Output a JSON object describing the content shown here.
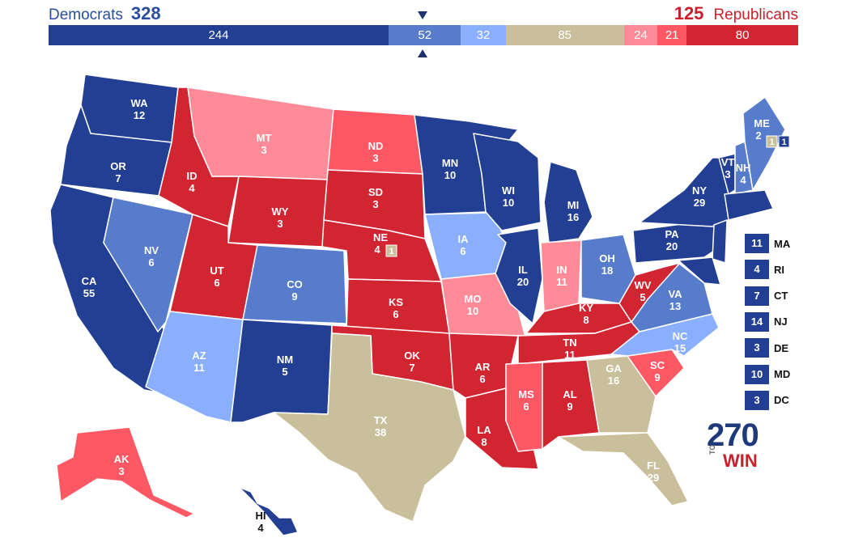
{
  "header": {
    "dem_name": "Democrats",
    "dem_total": "328",
    "rep_total": "125",
    "rep_name": "Republicans"
  },
  "bar": [
    {
      "value": 244,
      "label": "244",
      "color": "#233f94"
    },
    {
      "value": 52,
      "label": "52",
      "color": "#577ccc"
    },
    {
      "value": 32,
      "label": "32",
      "color": "#8aafff"
    },
    {
      "value": 85,
      "label": "85",
      "color": "#c9c09b"
    },
    {
      "value": 24,
      "label": "24",
      "color": "#ff8b98"
    },
    {
      "value": 21,
      "label": "21",
      "color": "#ff5865"
    },
    {
      "value": 80,
      "label": "80",
      "color": "#d22532"
    }
  ],
  "colors": {
    "safe_d": "#233f94",
    "likely_d": "#577ccc",
    "lean_d": "#8aafff",
    "tossup": "#c9c09b",
    "lean_r": "#ff8b98",
    "likely_r": "#ff5865",
    "safe_r": "#d22532"
  },
  "states": {
    "WA": {
      "ab": "WA",
      "ev": "12",
      "cat": "safe_d"
    },
    "OR": {
      "ab": "OR",
      "ev": "7",
      "cat": "safe_d"
    },
    "CA": {
      "ab": "CA",
      "ev": "55",
      "cat": "safe_d"
    },
    "NV": {
      "ab": "NV",
      "ev": "6",
      "cat": "likely_d"
    },
    "ID": {
      "ab": "ID",
      "ev": "4",
      "cat": "safe_r"
    },
    "MT": {
      "ab": "MT",
      "ev": "3",
      "cat": "lean_r"
    },
    "WY": {
      "ab": "WY",
      "ev": "3",
      "cat": "safe_r"
    },
    "UT": {
      "ab": "UT",
      "ev": "6",
      "cat": "safe_r"
    },
    "AZ": {
      "ab": "AZ",
      "ev": "11",
      "cat": "lean_d"
    },
    "CO": {
      "ab": "CO",
      "ev": "9",
      "cat": "likely_d"
    },
    "NM": {
      "ab": "NM",
      "ev": "5",
      "cat": "safe_d"
    },
    "ND": {
      "ab": "ND",
      "ev": "3",
      "cat": "likely_r"
    },
    "SD": {
      "ab": "SD",
      "ev": "3",
      "cat": "safe_r"
    },
    "NE": {
      "ab": "NE",
      "ev": "4",
      "cat": "safe_r"
    },
    "KS": {
      "ab": "KS",
      "ev": "6",
      "cat": "safe_r"
    },
    "OK": {
      "ab": "OK",
      "ev": "7",
      "cat": "safe_r"
    },
    "TX": {
      "ab": "TX",
      "ev": "38",
      "cat": "tossup"
    },
    "MN": {
      "ab": "MN",
      "ev": "10",
      "cat": "safe_d"
    },
    "IA": {
      "ab": "IA",
      "ev": "6",
      "cat": "lean_d"
    },
    "MO": {
      "ab": "MO",
      "ev": "10",
      "cat": "lean_r"
    },
    "AR": {
      "ab": "AR",
      "ev": "6",
      "cat": "safe_r"
    },
    "LA": {
      "ab": "LA",
      "ev": "8",
      "cat": "safe_r"
    },
    "WI": {
      "ab": "WI",
      "ev": "10",
      "cat": "safe_d"
    },
    "IL": {
      "ab": "IL",
      "ev": "20",
      "cat": "safe_d"
    },
    "MI": {
      "ab": "MI",
      "ev": "16",
      "cat": "safe_d"
    },
    "IN": {
      "ab": "IN",
      "ev": "11",
      "cat": "lean_r"
    },
    "OH": {
      "ab": "OH",
      "ev": "18",
      "cat": "likely_d"
    },
    "KY": {
      "ab": "KY",
      "ev": "8",
      "cat": "safe_r"
    },
    "TN": {
      "ab": "TN",
      "ev": "11",
      "cat": "safe_r"
    },
    "MS": {
      "ab": "MS",
      "ev": "6",
      "cat": "likely_r"
    },
    "AL": {
      "ab": "AL",
      "ev": "9",
      "cat": "safe_r"
    },
    "GA": {
      "ab": "GA",
      "ev": "16",
      "cat": "tossup"
    },
    "FL": {
      "ab": "FL",
      "ev": "29",
      "cat": "tossup"
    },
    "SC": {
      "ab": "SC",
      "ev": "9",
      "cat": "likely_r"
    },
    "NC": {
      "ab": "NC",
      "ev": "15",
      "cat": "lean_d"
    },
    "VA": {
      "ab": "VA",
      "ev": "13",
      "cat": "likely_d"
    },
    "WV": {
      "ab": "WV",
      "ev": "5",
      "cat": "safe_r"
    },
    "PA": {
      "ab": "PA",
      "ev": "20",
      "cat": "safe_d"
    },
    "NY": {
      "ab": "NY",
      "ev": "29",
      "cat": "safe_d"
    },
    "VT": {
      "ab": "VT",
      "ev": "3",
      "cat": "safe_d"
    },
    "NH": {
      "ab": "NH",
      "ev": "4",
      "cat": "likely_d"
    },
    "ME": {
      "ab": "ME",
      "ev": "2",
      "cat": "likely_d"
    },
    "AK": {
      "ab": "AK",
      "ev": "3",
      "cat": "likely_r"
    },
    "HI": {
      "ab": "HI",
      "ev": "4",
      "cat": "safe_d"
    }
  },
  "split_votes": {
    "ne_cd2": "1",
    "me_cd2": "1",
    "me_cd1": "1"
  },
  "small_states": [
    {
      "ab": "MA",
      "ev": "11"
    },
    {
      "ab": "RI",
      "ev": "4"
    },
    {
      "ab": "CT",
      "ev": "7"
    },
    {
      "ab": "NJ",
      "ev": "14"
    },
    {
      "ab": "DE",
      "ev": "3"
    },
    {
      "ab": "MD",
      "ev": "10"
    },
    {
      "ab": "DC",
      "ev": "3"
    }
  ],
  "logo": {
    "number": "270",
    "to": "TO",
    "win": "WIN"
  }
}
